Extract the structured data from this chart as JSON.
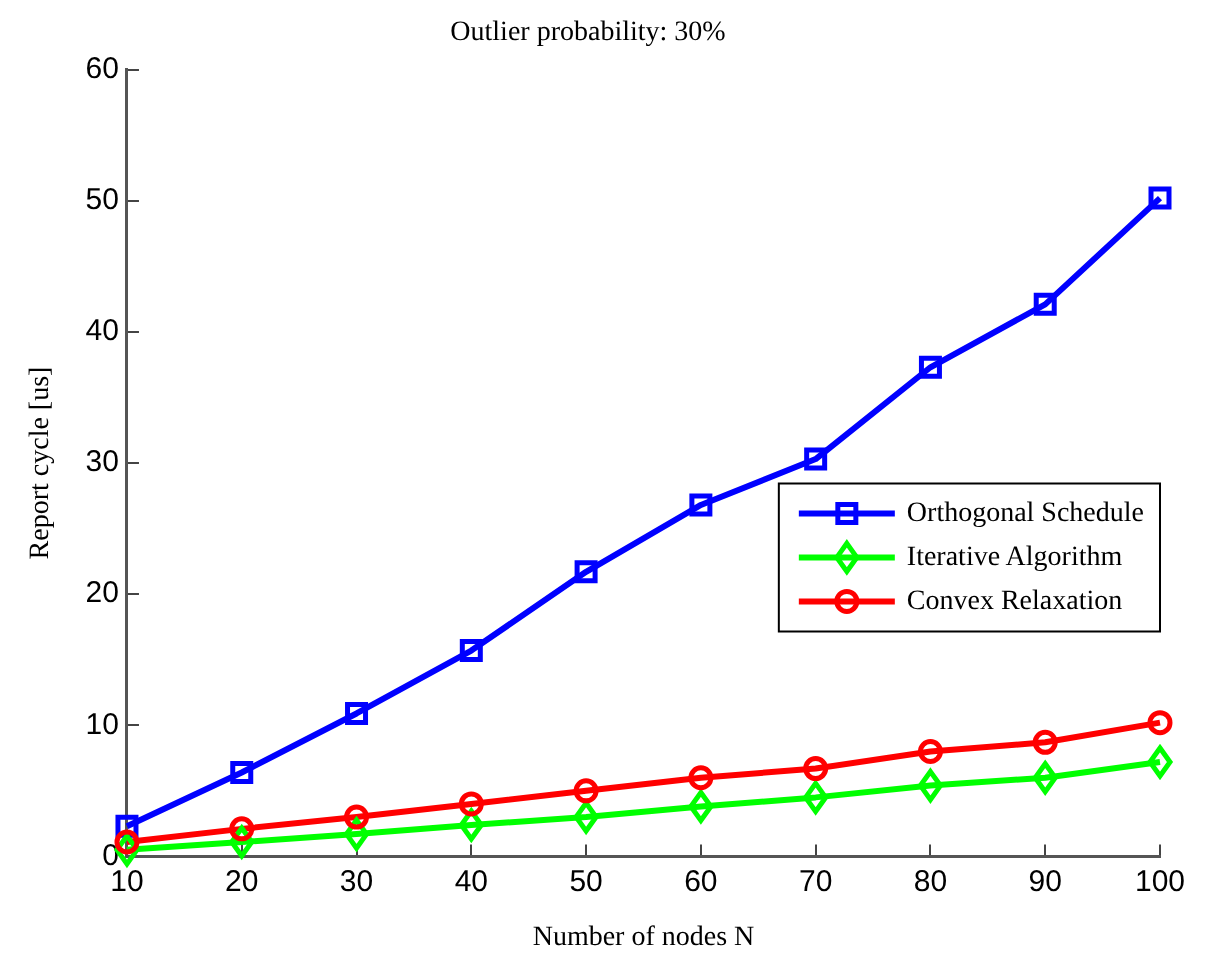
{
  "chart_data": {
    "type": "line",
    "title": "Outlier probability: 30%",
    "xlabel": "Number of nodes N",
    "ylabel": "Report cycle [us]",
    "x": [
      10,
      20,
      30,
      40,
      50,
      60,
      70,
      80,
      90,
      100
    ],
    "xlim": [
      10,
      100
    ],
    "xticks": [
      10,
      20,
      30,
      40,
      50,
      60,
      70,
      80,
      90,
      100
    ],
    "ylim": [
      0,
      60
    ],
    "yticks": [
      0,
      10,
      20,
      30,
      40,
      50,
      60
    ],
    "grid": false,
    "legend": "right",
    "line_style": "solid",
    "series": [
      {
        "name": "Orthogonal Schedule",
        "color": "#0000ff",
        "marker": "square",
        "values": [
          2.3,
          6.4,
          10.9,
          15.7,
          21.7,
          26.8,
          30.3,
          37.3,
          42.1,
          50.2
        ]
      },
      {
        "name": "Iterative Algorithm",
        "color": "#00ff00",
        "marker": "diamond",
        "values": [
          0.5,
          1.1,
          1.7,
          2.4,
          3.0,
          3.8,
          4.5,
          5.4,
          6.0,
          7.2
        ]
      },
      {
        "name": "Convex Relaxation",
        "color": "#ff0000",
        "marker": "circle",
        "values": [
          1.1,
          2.1,
          3.0,
          4.0,
          5.0,
          6.0,
          6.7,
          8.0,
          8.7,
          10.2
        ]
      }
    ]
  }
}
